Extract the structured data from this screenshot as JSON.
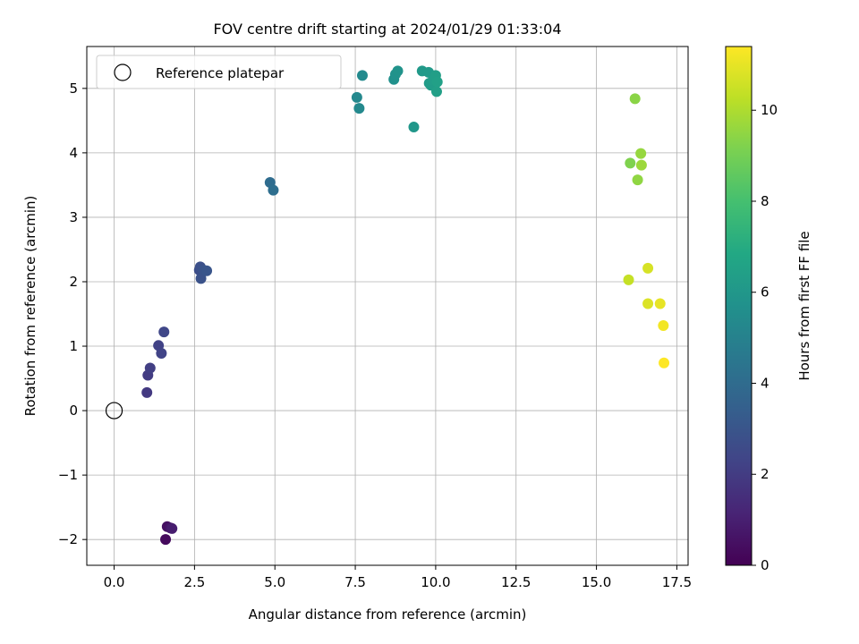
{
  "chart_data": {
    "type": "scatter",
    "title": "FOV centre drift starting at 2024/01/29 01:33:04",
    "xlabel": "Angular distance from reference (arcmin)",
    "ylabel": "Rotation from reference (arcmin)",
    "xlim": [
      -0.85,
      17.85
    ],
    "ylim": [
      -2.4,
      5.65
    ],
    "xticks": [
      0.0,
      2.5,
      5.0,
      7.5,
      10.0,
      12.5,
      15.0,
      17.5
    ],
    "xtick_labels": [
      "0.0",
      "2.5",
      "5.0",
      "7.5",
      "10.0",
      "12.5",
      "15.0",
      "17.5"
    ],
    "yticks": [
      -2,
      -1,
      0,
      1,
      2,
      3,
      4,
      5
    ],
    "ytick_labels": [
      "−2",
      "−1",
      "0",
      "1",
      "2",
      "3",
      "4",
      "5"
    ],
    "grid": true,
    "legend": {
      "placement": "top-left",
      "entries": [
        "Reference platepar"
      ]
    },
    "reference_point": {
      "x": 0.0,
      "y": 0.0,
      "label": "Reference platepar"
    },
    "colorbar": {
      "label": "Hours from first FF file",
      "colormap": "viridis",
      "range": [
        0,
        11.4
      ],
      "ticks": [
        0,
        2,
        4,
        6,
        8,
        10
      ],
      "tick_labels": [
        "0",
        "2",
        "4",
        "6",
        "8",
        "10"
      ]
    },
    "points": [
      {
        "x": 1.6,
        "y": -2.0,
        "h": 0.3
      },
      {
        "x": 1.65,
        "y": -1.8,
        "h": 0.5
      },
      {
        "x": 1.75,
        "y": -1.82,
        "h": 0.7
      },
      {
        "x": 1.8,
        "y": -1.83,
        "h": 0.9
      },
      {
        "x": 1.02,
        "y": 0.28,
        "h": 1.9
      },
      {
        "x": 1.05,
        "y": 0.55,
        "h": 2.0
      },
      {
        "x": 1.12,
        "y": 0.66,
        "h": 2.1
      },
      {
        "x": 1.38,
        "y": 1.01,
        "h": 2.2
      },
      {
        "x": 1.47,
        "y": 0.89,
        "h": 2.3
      },
      {
        "x": 1.55,
        "y": 1.22,
        "h": 2.4
      },
      {
        "x": 2.65,
        "y": 2.18,
        "h": 2.7
      },
      {
        "x": 2.68,
        "y": 2.23,
        "h": 2.8
      },
      {
        "x": 2.7,
        "y": 2.05,
        "h": 2.85
      },
      {
        "x": 2.78,
        "y": 2.18,
        "h": 2.9
      },
      {
        "x": 2.88,
        "y": 2.17,
        "h": 3.0
      },
      {
        "x": 4.85,
        "y": 3.54,
        "h": 4.0
      },
      {
        "x": 4.95,
        "y": 3.42,
        "h": 4.1
      },
      {
        "x": 7.55,
        "y": 4.86,
        "h": 5.3
      },
      {
        "x": 7.62,
        "y": 4.69,
        "h": 5.35
      },
      {
        "x": 7.72,
        "y": 5.2,
        "h": 5.4
      },
      {
        "x": 8.7,
        "y": 5.14,
        "h": 5.7
      },
      {
        "x": 8.75,
        "y": 5.22,
        "h": 5.75
      },
      {
        "x": 8.82,
        "y": 5.27,
        "h": 5.8
      },
      {
        "x": 9.32,
        "y": 4.4,
        "h": 6.0
      },
      {
        "x": 9.58,
        "y": 5.27,
        "h": 6.1
      },
      {
        "x": 9.78,
        "y": 5.25,
        "h": 6.15
      },
      {
        "x": 9.8,
        "y": 5.08,
        "h": 6.2
      },
      {
        "x": 9.85,
        "y": 5.05,
        "h": 6.25
      },
      {
        "x": 9.92,
        "y": 5.13,
        "h": 6.3
      },
      {
        "x": 10.0,
        "y": 5.2,
        "h": 6.35
      },
      {
        "x": 10.03,
        "y": 4.95,
        "h": 6.4
      },
      {
        "x": 10.05,
        "y": 5.1,
        "h": 6.45
      },
      {
        "x": 16.05,
        "y": 3.84,
        "h": 9.2
      },
      {
        "x": 16.2,
        "y": 4.84,
        "h": 9.4
      },
      {
        "x": 16.28,
        "y": 3.58,
        "h": 9.5
      },
      {
        "x": 16.38,
        "y": 3.99,
        "h": 9.6
      },
      {
        "x": 16.4,
        "y": 3.81,
        "h": 9.7
      },
      {
        "x": 16.0,
        "y": 2.03,
        "h": 10.4
      },
      {
        "x": 16.6,
        "y": 2.21,
        "h": 10.7
      },
      {
        "x": 16.6,
        "y": 1.66,
        "h": 10.8
      },
      {
        "x": 16.98,
        "y": 1.66,
        "h": 11.0
      },
      {
        "x": 17.08,
        "y": 1.32,
        "h": 11.2
      },
      {
        "x": 17.1,
        "y": 0.74,
        "h": 11.4
      }
    ]
  }
}
